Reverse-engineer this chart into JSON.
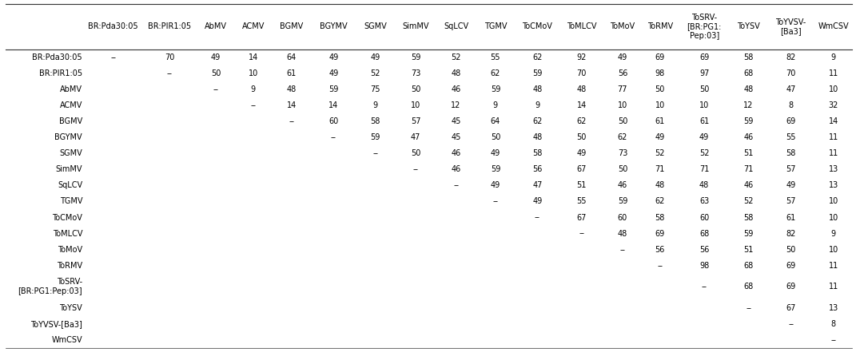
{
  "col_headers": [
    "BR:Pda30:05",
    "BR:PIR1:05",
    "AbMV",
    "ACMV",
    "BGMV",
    "BGYMV",
    "SGMV",
    "SimMV",
    "SqLCV",
    "TGMV",
    "ToCMoV",
    "ToMLCV",
    "ToMoV",
    "ToRMV",
    "ToSRV-\n[BR:PG1:\nPep:03]",
    "ToYSV",
    "ToYVSV-\n[Ba3]",
    "WmCSV"
  ],
  "row_headers": [
    "BR:Pda30:05",
    "BR:PIR1:05",
    "AbMV",
    "ACMV",
    "BGMV",
    "BGYMV",
    "SGMV",
    "SimMV",
    "SqLCV",
    "TGMV",
    "ToCMoV",
    "ToMLCV",
    "ToMoV",
    "ToRMV",
    "ToSRV-\n[BR:PG1:Pep:03]",
    "ToYSV",
    "ToYVSV-[Ba3]",
    "WmCSV"
  ],
  "data": [
    [
      "--",
      "70",
      "49",
      "14",
      "64",
      "49",
      "49",
      "59",
      "52",
      "55",
      "62",
      "92",
      "49",
      "69",
      "69",
      "58",
      "82",
      "9"
    ],
    [
      "",
      "--",
      "50",
      "10",
      "61",
      "49",
      "52",
      "73",
      "48",
      "62",
      "59",
      "70",
      "56",
      "98",
      "97",
      "68",
      "70",
      "11"
    ],
    [
      "",
      "",
      "--",
      "9",
      "48",
      "59",
      "75",
      "50",
      "46",
      "59",
      "48",
      "48",
      "77",
      "50",
      "50",
      "48",
      "47",
      "10"
    ],
    [
      "",
      "",
      "",
      "--",
      "14",
      "14",
      "9",
      "10",
      "12",
      "9",
      "9",
      "14",
      "10",
      "10",
      "10",
      "12",
      "8",
      "32"
    ],
    [
      "",
      "",
      "",
      "",
      "--",
      "60",
      "58",
      "57",
      "45",
      "64",
      "62",
      "62",
      "50",
      "61",
      "61",
      "59",
      "69",
      "14"
    ],
    [
      "",
      "",
      "",
      "",
      "",
      "--",
      "59",
      "47",
      "45",
      "50",
      "48",
      "50",
      "62",
      "49",
      "49",
      "46",
      "55",
      "11"
    ],
    [
      "",
      "",
      "",
      "",
      "",
      "",
      "--",
      "50",
      "46",
      "49",
      "58",
      "49",
      "73",
      "52",
      "52",
      "51",
      "58",
      "11"
    ],
    [
      "",
      "",
      "",
      "",
      "",
      "",
      "",
      "--",
      "46",
      "59",
      "56",
      "67",
      "50",
      "71",
      "71",
      "71",
      "57",
      "13"
    ],
    [
      "",
      "",
      "",
      "",
      "",
      "",
      "",
      "",
      "--",
      "49",
      "47",
      "51",
      "46",
      "48",
      "48",
      "46",
      "49",
      "13"
    ],
    [
      "",
      "",
      "",
      "",
      "",
      "",
      "",
      "",
      "",
      "--",
      "49",
      "55",
      "59",
      "62",
      "63",
      "52",
      "57",
      "10"
    ],
    [
      "",
      "",
      "",
      "",
      "",
      "",
      "",
      "",
      "",
      "",
      "--",
      "67",
      "60",
      "58",
      "60",
      "58",
      "61",
      "10"
    ],
    [
      "",
      "",
      "",
      "",
      "",
      "",
      "",
      "",
      "",
      "",
      "",
      "--",
      "48",
      "69",
      "68",
      "59",
      "82",
      "9"
    ],
    [
      "",
      "",
      "",
      "",
      "",
      "",
      "",
      "",
      "",
      "",
      "",
      "",
      "--",
      "56",
      "56",
      "51",
      "50",
      "10"
    ],
    [
      "",
      "",
      "",
      "",
      "",
      "",
      "",
      "",
      "",
      "",
      "",
      "",
      "",
      "--",
      "98",
      "68",
      "69",
      "11"
    ],
    [
      "",
      "",
      "",
      "",
      "",
      "",
      "",
      "",
      "",
      "",
      "",
      "",
      "",
      "",
      "--",
      "68",
      "69",
      "11"
    ],
    [
      "",
      "",
      "",
      "",
      "",
      "",
      "",
      "",
      "",
      "",
      "",
      "",
      "",
      "",
      "",
      "--",
      "67",
      "13"
    ],
    [
      "",
      "",
      "",
      "",
      "",
      "",
      "",
      "",
      "",
      "",
      "",
      "",
      "",
      "",
      "",
      "",
      "--",
      "8"
    ],
    [
      "",
      "",
      "",
      "",
      "",
      "",
      "",
      "",
      "",
      "",
      "",
      "",
      "",
      "",
      "",
      "",
      "",
      "--"
    ]
  ],
  "background_color": "#ffffff",
  "text_color": "#000000",
  "font_size": 7.0,
  "line_color": "#888888",
  "bold_line_color": "#333333"
}
